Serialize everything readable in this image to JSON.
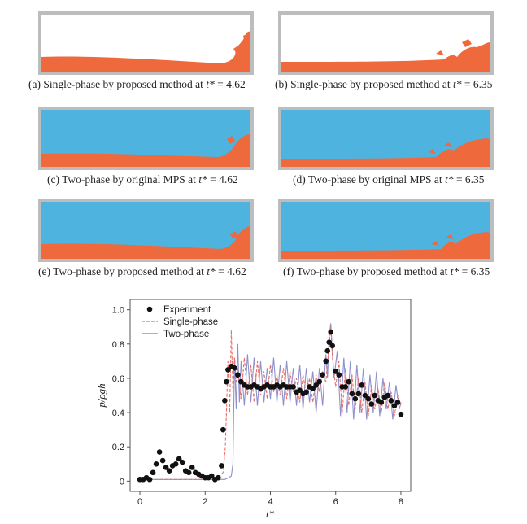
{
  "panels": [
    {
      "id": "a",
      "prefix": "(a) Single-phase by proposed method at ",
      "var": "t*",
      "eq": " = 4.62"
    },
    {
      "id": "b",
      "prefix": "(b) Single-phase by proposed method at ",
      "var": "t*",
      "eq": " = 6.35"
    },
    {
      "id": "c",
      "prefix": "(c) Two-phase by original MPS at ",
      "var": "t*",
      "eq": " = 4.62"
    },
    {
      "id": "d",
      "prefix": "(d) Two-phase by original MPS at ",
      "var": "t*",
      "eq": " = 6.35"
    },
    {
      "id": "e",
      "prefix": "(e) Two-phase by proposed method at ",
      "var": "t*",
      "eq": " = 4.62"
    },
    {
      "id": "f",
      "prefix": "(f) Two-phase by proposed method at ",
      "var": "t*",
      "eq": " = 6.35"
    }
  ],
  "colors": {
    "water": "#ee6a3c",
    "air": "#4fb3df",
    "frame": "#bdbdbd",
    "experiment": "#111111",
    "single_phase": "#e8706a",
    "two_phase": "#7b7ec4"
  },
  "chart_data": {
    "type": "scatter",
    "xlabel": "t*",
    "ylabel": "p/ρgh",
    "xlim": [
      -0.3,
      8.3
    ],
    "ylim": [
      -0.06,
      1.06
    ],
    "xticks": [
      0,
      2,
      4,
      6,
      8
    ],
    "xtick_labels": [
      "0",
      "2",
      "4",
      "6",
      "8"
    ],
    "yticks": [
      0,
      0.2,
      0.4,
      0.6,
      0.8,
      1.0
    ],
    "ytick_labels": [
      "0",
      "0.2",
      "0.4",
      "0.6",
      "0.8",
      "1.0"
    ],
    "legend": {
      "position": "top-left",
      "entries": [
        "Experiment",
        "Single-phase",
        "Two-phase"
      ]
    },
    "series": [
      {
        "name": "Experiment",
        "style": "markers",
        "x": [
          0.0,
          0.1,
          0.2,
          0.3,
          0.4,
          0.5,
          0.6,
          0.7,
          0.8,
          0.9,
          1.0,
          1.1,
          1.2,
          1.3,
          1.4,
          1.5,
          1.6,
          1.7,
          1.8,
          1.9,
          2.0,
          2.1,
          2.2,
          2.3,
          2.4,
          2.5,
          2.55,
          2.6,
          2.65,
          2.7,
          2.8,
          2.9,
          3.0,
          3.1,
          3.2,
          3.3,
          3.4,
          3.5,
          3.6,
          3.7,
          3.8,
          3.9,
          4.0,
          4.1,
          4.2,
          4.3,
          4.4,
          4.5,
          4.6,
          4.7,
          4.8,
          4.9,
          5.0,
          5.1,
          5.2,
          5.3,
          5.4,
          5.5,
          5.6,
          5.7,
          5.75,
          5.8,
          5.85,
          5.9,
          6.0,
          6.1,
          6.2,
          6.3,
          6.4,
          6.5,
          6.6,
          6.7,
          6.8,
          6.9,
          7.0,
          7.1,
          7.2,
          7.3,
          7.4,
          7.5,
          7.6,
          7.7,
          7.8,
          7.9,
          8.0
        ],
        "y": [
          0.01,
          0.01,
          0.02,
          0.01,
          0.05,
          0.1,
          0.17,
          0.12,
          0.08,
          0.06,
          0.09,
          0.1,
          0.13,
          0.11,
          0.06,
          0.05,
          0.08,
          0.05,
          0.04,
          0.03,
          0.02,
          0.02,
          0.03,
          0.01,
          0.02,
          0.09,
          0.3,
          0.47,
          0.58,
          0.65,
          0.67,
          0.66,
          0.62,
          0.58,
          0.56,
          0.55,
          0.55,
          0.56,
          0.55,
          0.54,
          0.55,
          0.56,
          0.55,
          0.55,
          0.56,
          0.55,
          0.56,
          0.55,
          0.55,
          0.55,
          0.52,
          0.53,
          0.51,
          0.52,
          0.55,
          0.54,
          0.56,
          0.58,
          0.62,
          0.7,
          0.76,
          0.81,
          0.87,
          0.79,
          0.64,
          0.62,
          0.55,
          0.55,
          0.58,
          0.51,
          0.48,
          0.51,
          0.56,
          0.5,
          0.48,
          0.45,
          0.5,
          0.47,
          0.46,
          0.49,
          0.5,
          0.47,
          0.44,
          0.46,
          0.39
        ]
      },
      {
        "name": "Single-phase",
        "style": "dashed",
        "x": [
          0,
          0.5,
          1.0,
          1.5,
          2.0,
          2.3,
          2.45,
          2.55,
          2.62,
          2.7,
          2.75,
          2.8,
          2.85,
          2.9,
          2.95,
          3.0,
          3.1,
          3.2,
          3.3,
          3.4,
          3.5,
          3.6,
          3.7,
          3.8,
          3.9,
          4.0,
          4.1,
          4.2,
          4.3,
          4.4,
          4.5,
          4.6,
          4.7,
          4.8,
          4.9,
          5.0,
          5.1,
          5.2,
          5.3,
          5.4,
          5.5,
          5.6,
          5.7,
          5.8,
          5.85,
          5.9,
          6.0,
          6.1,
          6.2,
          6.3,
          6.4,
          6.5,
          6.6,
          6.7,
          6.8,
          6.9,
          7.0,
          7.1,
          7.2,
          7.3,
          7.4,
          7.5,
          7.6,
          7.7,
          7.8,
          7.9,
          8.0
        ],
        "y": [
          0.01,
          0.01,
          0.01,
          0.01,
          0.01,
          0.02,
          0.03,
          0.05,
          0.2,
          0.7,
          0.4,
          0.88,
          0.52,
          0.72,
          0.58,
          0.66,
          0.48,
          0.72,
          0.5,
          0.68,
          0.46,
          0.7,
          0.5,
          0.64,
          0.48,
          0.68,
          0.52,
          0.62,
          0.5,
          0.66,
          0.48,
          0.64,
          0.52,
          0.6,
          0.46,
          0.62,
          0.5,
          0.6,
          0.46,
          0.62,
          0.52,
          0.64,
          0.58,
          0.8,
          0.9,
          0.72,
          0.55,
          0.7,
          0.4,
          0.66,
          0.44,
          0.62,
          0.42,
          0.6,
          0.4,
          0.58,
          0.38,
          0.56,
          0.42,
          0.54,
          0.4,
          0.58,
          0.42,
          0.52,
          0.38,
          0.5,
          0.44
        ]
      },
      {
        "name": "Two-phase",
        "style": "solid",
        "x": [
          0,
          0.5,
          1.0,
          1.5,
          2.0,
          2.4,
          2.6,
          2.72,
          2.8,
          2.85,
          2.9,
          2.95,
          3.0,
          3.05,
          3.1,
          3.2,
          3.3,
          3.4,
          3.5,
          3.6,
          3.7,
          3.8,
          3.9,
          4.0,
          4.1,
          4.2,
          4.3,
          4.4,
          4.5,
          4.6,
          4.7,
          4.8,
          4.9,
          5.0,
          5.1,
          5.2,
          5.3,
          5.4,
          5.5,
          5.6,
          5.7,
          5.75,
          5.8,
          5.85,
          5.95,
          6.05,
          6.15,
          6.25,
          6.35,
          6.45,
          6.55,
          6.65,
          6.75,
          6.85,
          6.95,
          7.05,
          7.15,
          7.25,
          7.35,
          7.45,
          7.55,
          7.65,
          7.75,
          7.85,
          7.95,
          8.0
        ],
        "y": [
          0.01,
          0.01,
          0.01,
          0.01,
          0.01,
          0.01,
          0.01,
          0.02,
          0.03,
          0.1,
          0.72,
          0.42,
          0.8,
          0.46,
          0.7,
          0.44,
          0.74,
          0.46,
          0.72,
          0.44,
          0.7,
          0.46,
          0.66,
          0.48,
          0.72,
          0.46,
          0.68,
          0.44,
          0.7,
          0.46,
          0.66,
          0.44,
          0.68,
          0.42,
          0.66,
          0.46,
          0.64,
          0.4,
          0.66,
          0.44,
          0.74,
          0.6,
          0.84,
          0.92,
          0.6,
          0.76,
          0.38,
          0.72,
          0.4,
          0.7,
          0.36,
          0.68,
          0.4,
          0.66,
          0.36,
          0.62,
          0.4,
          0.64,
          0.38,
          0.6,
          0.42,
          0.58,
          0.36,
          0.56,
          0.42,
          0.46
        ]
      }
    ]
  }
}
